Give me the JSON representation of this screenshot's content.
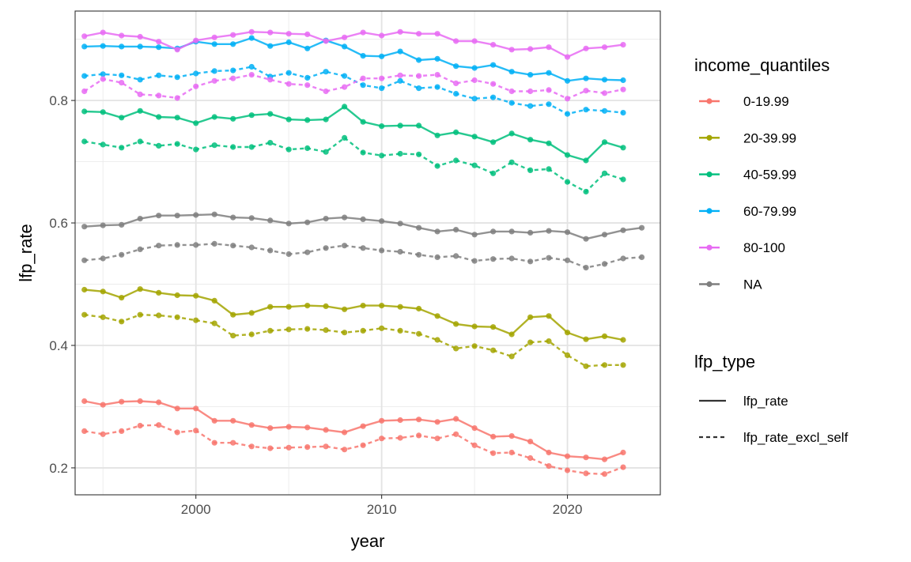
{
  "chart_data": {
    "type": "line",
    "xlabel": "year",
    "ylabel": "lfp_rate",
    "xlim": [
      1993.5,
      2025.0
    ],
    "ylim": [
      0.156,
      0.946
    ],
    "x_ticks": [
      2000,
      2010,
      2020
    ],
    "y_ticks": [
      0.2,
      0.4,
      0.6,
      0.8
    ],
    "x_tick_labels": [
      "2000",
      "2010",
      "2020"
    ],
    "y_tick_labels": [
      "0.2",
      "0.4",
      "0.6",
      "0.8"
    ],
    "grid": true,
    "legend_position": "right",
    "legends": [
      {
        "title": "income_quantiles",
        "entries": [
          {
            "label": "0-19.99",
            "color": "#F8766D"
          },
          {
            "label": "20-39.99",
            "color": "#A3A500"
          },
          {
            "label": "40-59.99",
            "color": "#00BF7D"
          },
          {
            "label": "60-79.99",
            "color": "#00B0F6"
          },
          {
            "label": "80-100",
            "color": "#E76BF3"
          },
          {
            "label": "NA",
            "color": "#7F7F7F"
          }
        ]
      },
      {
        "title": "lfp_type",
        "entries": [
          {
            "label": "lfp_rate",
            "linestyle": "solid"
          },
          {
            "label": "lfp_rate_excl_self",
            "linestyle": "dashed"
          }
        ]
      }
    ],
    "x": [
      1994,
      1995,
      1996,
      1997,
      1998,
      1999,
      2000,
      2001,
      2002,
      2003,
      2004,
      2005,
      2006,
      2007,
      2008,
      2009,
      2010,
      2011,
      2012,
      2013,
      2014,
      2015,
      2016,
      2017,
      2018,
      2019,
      2020,
      2021,
      2022,
      2023,
      2024
    ],
    "series": [
      {
        "name": "0-19.99",
        "lfp_type": "lfp_rate",
        "color": "#F8766D",
        "linestyle": "solid",
        "values": [
          0.309,
          0.303,
          0.308,
          0.309,
          0.307,
          0.297,
          0.297,
          0.277,
          0.277,
          0.27,
          0.265,
          0.267,
          0.266,
          0.262,
          0.258,
          0.268,
          0.277,
          0.278,
          0.279,
          0.275,
          0.28,
          0.265,
          0.251,
          0.252,
          0.243,
          0.225,
          0.219,
          0.217,
          0.214,
          0.225,
          null
        ]
      },
      {
        "name": "0-19.99",
        "lfp_type": "lfp_rate_excl_self",
        "color": "#F8766D",
        "linestyle": "dashed",
        "values": [
          0.26,
          0.255,
          0.26,
          0.269,
          0.27,
          0.258,
          0.261,
          0.241,
          0.241,
          0.235,
          0.232,
          0.233,
          0.234,
          0.235,
          0.23,
          0.237,
          0.248,
          0.249,
          0.253,
          0.248,
          0.255,
          0.237,
          0.224,
          0.225,
          0.216,
          0.203,
          0.196,
          0.191,
          0.19,
          0.201,
          null
        ]
      },
      {
        "name": "20-39.99",
        "lfp_type": "lfp_rate",
        "color": "#A3A500",
        "linestyle": "solid",
        "values": [
          0.491,
          0.488,
          0.478,
          0.492,
          0.486,
          0.482,
          0.481,
          0.473,
          0.45,
          0.453,
          0.463,
          0.463,
          0.465,
          0.464,
          0.459,
          0.465,
          0.465,
          0.463,
          0.46,
          0.448,
          0.435,
          0.431,
          0.43,
          0.418,
          0.446,
          0.448,
          0.421,
          0.41,
          0.415,
          0.409,
          null
        ]
      },
      {
        "name": "20-39.99",
        "lfp_type": "lfp_rate_excl_self",
        "color": "#A3A500",
        "linestyle": "dashed",
        "values": [
          0.45,
          0.446,
          0.439,
          0.45,
          0.449,
          0.446,
          0.441,
          0.436,
          0.416,
          0.418,
          0.424,
          0.426,
          0.427,
          0.425,
          0.421,
          0.424,
          0.428,
          0.424,
          0.419,
          0.409,
          0.395,
          0.399,
          0.392,
          0.382,
          0.405,
          0.407,
          0.384,
          0.366,
          0.368,
          0.368,
          null
        ]
      },
      {
        "name": "40-59.99",
        "lfp_type": "lfp_rate",
        "color": "#00BF7D",
        "linestyle": "solid",
        "values": [
          0.782,
          0.781,
          0.772,
          0.783,
          0.773,
          0.772,
          0.763,
          0.773,
          0.77,
          0.776,
          0.778,
          0.769,
          0.768,
          0.769,
          0.79,
          0.765,
          0.758,
          0.759,
          0.759,
          0.743,
          0.748,
          0.741,
          0.732,
          0.746,
          0.736,
          0.73,
          0.711,
          0.702,
          0.732,
          0.723,
          null
        ]
      },
      {
        "name": "40-59.99",
        "lfp_type": "lfp_rate_excl_self",
        "color": "#00BF7D",
        "linestyle": "dashed",
        "values": [
          0.733,
          0.728,
          0.723,
          0.733,
          0.726,
          0.729,
          0.72,
          0.727,
          0.724,
          0.724,
          0.731,
          0.72,
          0.722,
          0.716,
          0.739,
          0.715,
          0.71,
          0.713,
          0.712,
          0.693,
          0.702,
          0.694,
          0.681,
          0.699,
          0.686,
          0.688,
          0.667,
          0.651,
          0.681,
          0.671,
          null
        ]
      },
      {
        "name": "60-79.99",
        "lfp_type": "lfp_rate",
        "color": "#00B0F6",
        "linestyle": "solid",
        "values": [
          0.888,
          0.889,
          0.888,
          0.888,
          0.887,
          0.885,
          0.896,
          0.892,
          0.892,
          0.902,
          0.889,
          0.895,
          0.885,
          0.898,
          0.888,
          0.873,
          0.872,
          0.88,
          0.866,
          0.868,
          0.856,
          0.853,
          0.858,
          0.847,
          0.842,
          0.845,
          0.832,
          0.836,
          0.834,
          0.833,
          null
        ]
      },
      {
        "name": "60-79.99",
        "lfp_type": "lfp_rate_excl_self",
        "color": "#00B0F6",
        "linestyle": "dashed",
        "values": [
          0.84,
          0.843,
          0.841,
          0.834,
          0.841,
          0.838,
          0.844,
          0.848,
          0.849,
          0.855,
          0.839,
          0.845,
          0.837,
          0.847,
          0.84,
          0.825,
          0.82,
          0.832,
          0.82,
          0.822,
          0.811,
          0.803,
          0.805,
          0.796,
          0.791,
          0.794,
          0.778,
          0.785,
          0.783,
          0.78,
          null
        ]
      },
      {
        "name": "80-100",
        "lfp_type": "lfp_rate",
        "color": "#E76BF3",
        "linestyle": "solid",
        "values": [
          0.905,
          0.911,
          0.906,
          0.904,
          0.896,
          0.883,
          0.898,
          0.903,
          0.907,
          0.912,
          0.911,
          0.909,
          0.908,
          0.897,
          0.903,
          0.911,
          0.906,
          0.912,
          0.909,
          0.909,
          0.897,
          0.897,
          0.891,
          0.883,
          0.884,
          0.887,
          0.871,
          0.885,
          0.887,
          0.891,
          null
        ]
      },
      {
        "name": "80-100",
        "lfp_type": "lfp_rate_excl_self",
        "color": "#E76BF3",
        "linestyle": "dashed",
        "values": [
          0.815,
          0.835,
          0.829,
          0.81,
          0.808,
          0.804,
          0.823,
          0.832,
          0.836,
          0.842,
          0.834,
          0.827,
          0.825,
          0.815,
          0.822,
          0.836,
          0.836,
          0.841,
          0.84,
          0.842,
          0.828,
          0.833,
          0.827,
          0.815,
          0.815,
          0.817,
          0.803,
          0.816,
          0.812,
          0.818,
          null
        ]
      },
      {
        "name": "NA",
        "lfp_type": "lfp_rate",
        "color": "#7F7F7F",
        "linestyle": "solid",
        "values": [
          0.594,
          0.596,
          0.597,
          0.607,
          0.612,
          0.612,
          0.613,
          0.614,
          0.609,
          0.608,
          0.604,
          0.599,
          0.601,
          0.607,
          0.609,
          0.606,
          0.603,
          0.599,
          0.592,
          0.586,
          0.589,
          0.581,
          0.586,
          0.586,
          0.584,
          0.587,
          0.585,
          0.574,
          0.581,
          0.588,
          0.592
        ]
      },
      {
        "name": "NA",
        "lfp_type": "lfp_rate_excl_self",
        "color": "#7F7F7F",
        "linestyle": "dashed",
        "values": [
          0.539,
          0.542,
          0.548,
          0.557,
          0.563,
          0.564,
          0.564,
          0.566,
          0.563,
          0.56,
          0.555,
          0.549,
          0.552,
          0.559,
          0.563,
          0.559,
          0.555,
          0.553,
          0.548,
          0.544,
          0.546,
          0.538,
          0.541,
          0.542,
          0.537,
          0.543,
          0.539,
          0.527,
          0.533,
          0.542,
          0.544
        ]
      }
    ]
  }
}
